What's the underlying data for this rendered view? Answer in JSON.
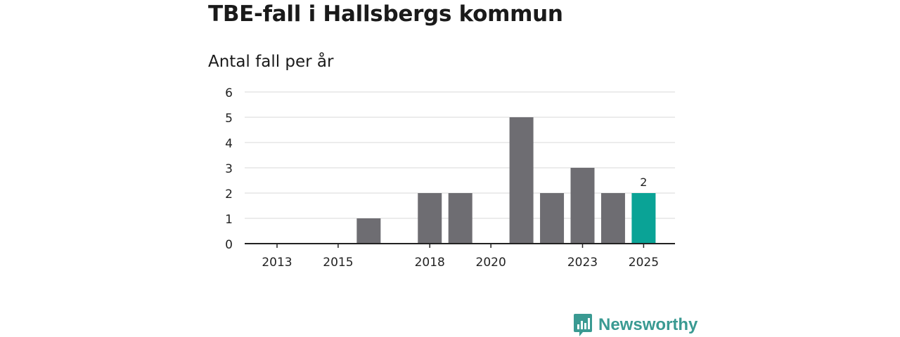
{
  "header": {
    "title": "TBE-fall i Hallsbergs kommun",
    "subtitle": "Antal fall per år"
  },
  "chart_data": {
    "type": "bar",
    "title": "TBE-fall i Hallsbergs kommun",
    "subtitle": "Antal fall per år",
    "xlabel": "",
    "ylabel": "",
    "categories": [
      "2013",
      "2014",
      "2015",
      "2016",
      "2017",
      "2018",
      "2019",
      "2020",
      "2021",
      "2022",
      "2023",
      "2024",
      "2025"
    ],
    "values": [
      0,
      0,
      0,
      1,
      0,
      2,
      2,
      0,
      5,
      2,
      3,
      2,
      2
    ],
    "x_tick_labels": [
      "2013",
      "2015",
      "2018",
      "2020",
      "2023",
      "2025"
    ],
    "y_ticks": [
      0,
      1,
      2,
      3,
      4,
      5,
      6
    ],
    "ylim": [
      0,
      6
    ],
    "grid": true,
    "highlight": {
      "category": "2025",
      "label": "2"
    },
    "colors": {
      "bar": "#6e6d72",
      "highlight": "#0aa396",
      "grid": "#d9d9d9",
      "axis": "#222222"
    }
  },
  "branding": {
    "name": "Newsworthy",
    "color": "#3a9a92"
  }
}
